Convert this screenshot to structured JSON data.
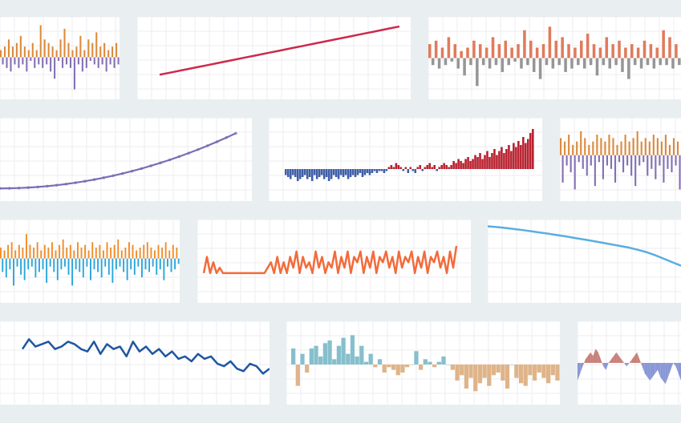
{
  "colors": {
    "background": "#e9eef1",
    "tile": "#ffffff",
    "grid": "#eceef0"
  },
  "chart_data": [
    {
      "id": "t1",
      "type": "bar",
      "subtype": "diverging",
      "colors": {
        "pos": "#dc8a3c",
        "neg": "#8470b4"
      },
      "ylim": [
        -10,
        10
      ],
      "values": [
        2,
        -2,
        3,
        -3,
        5,
        -4,
        3,
        -2,
        4,
        -3,
        6,
        -2,
        3,
        -4,
        2,
        -1,
        4,
        -3,
        2,
        -2,
        9,
        -3,
        5,
        -2,
        4,
        -4,
        3,
        -6,
        2,
        -1,
        5,
        -3,
        8,
        -2,
        4,
        -3,
        2,
        -9,
        3,
        -2,
        6,
        -4,
        2,
        -3,
        5,
        -1,
        4,
        -2,
        7,
        -3,
        3,
        -2,
        4,
        -4,
        2,
        -2,
        3,
        -3,
        4,
        -2
      ]
    },
    {
      "id": "t2",
      "type": "line",
      "colors": {
        "line": "#cc2a4e"
      },
      "x": [
        0,
        1,
        2,
        3,
        4,
        5,
        6,
        7,
        8,
        9,
        10,
        11,
        12,
        13,
        14,
        15,
        16,
        17,
        18,
        19,
        20
      ],
      "values": [
        0,
        2.6,
        5.3,
        7.9,
        10.5,
        13.2,
        15.8,
        18.5,
        21.1,
        23.8,
        26.4,
        29.1,
        31.7,
        34.4,
        37,
        39.7,
        42.3,
        45,
        47.6,
        50.3,
        52.9
      ],
      "ylim": [
        -20,
        60
      ]
    },
    {
      "id": "t3",
      "type": "bar",
      "subtype": "diverging",
      "colors": {
        "pos": "#e07b5c",
        "neg": "#969696"
      },
      "ylim": [
        -10,
        10
      ],
      "values": [
        4,
        -2,
        5,
        -3,
        3,
        -2,
        6,
        -1,
        4,
        -3,
        2,
        -5,
        3,
        -2,
        5,
        -8,
        4,
        -2,
        3,
        -3,
        6,
        -2,
        4,
        -4,
        5,
        -2,
        3,
        -1,
        4,
        -3,
        8,
        -2,
        5,
        -4,
        3,
        -6,
        4,
        -2,
        9,
        -3,
        5,
        -2,
        6,
        -4,
        4,
        -3,
        3,
        -2,
        5,
        -3,
        7,
        -2,
        4,
        -5,
        3,
        -2,
        6,
        -3,
        4,
        -2,
        5,
        -4,
        3,
        -6,
        4,
        -2,
        3,
        -3,
        5,
        -2,
        4,
        -3,
        3,
        -2,
        8,
        -2,
        6,
        -3,
        4,
        -2
      ]
    },
    {
      "id": "t4",
      "type": "line",
      "subtype": "quadratic-with-markers",
      "colors": {
        "line": "#7b6db3"
      },
      "x": [
        0,
        1,
        2,
        3,
        4,
        5,
        6,
        7,
        8,
        9,
        10,
        11,
        12,
        13,
        14,
        15,
        16,
        17,
        18,
        19,
        20,
        21,
        22,
        23,
        24,
        25
      ],
      "values": [
        0,
        0.4,
        1.5,
        3.4,
        6,
        9.4,
        13.5,
        18.4,
        24,
        30.4,
        37.5,
        45.4,
        54,
        63.4,
        73.5,
        84.4,
        96,
        108.4,
        121.5,
        135.4,
        150,
        165.4,
        181.5,
        198.4,
        216,
        234.4
      ],
      "ylim": [
        -20,
        280
      ]
    },
    {
      "id": "t5",
      "type": "bar",
      "subtype": "diverging",
      "colors": {
        "pos": "#b8202e",
        "neg": "#3f5ea8"
      },
      "ylim": [
        -12,
        24
      ],
      "values": [
        -3,
        -4,
        -5,
        -3,
        -4,
        -6,
        -5,
        -4,
        -3,
        -5,
        -4,
        -6,
        -3,
        -5,
        -4,
        -3,
        -5,
        -4,
        -6,
        -5,
        -3,
        -4,
        -5,
        -3,
        -4,
        -3,
        -5,
        -4,
        -3,
        -4,
        -3,
        -2,
        -4,
        -3,
        -2,
        -3,
        -2,
        -1,
        -2,
        -1,
        -1,
        -2,
        -1,
        1,
        2,
        1,
        3,
        2,
        1,
        -1,
        1,
        -2,
        1,
        -1,
        -2,
        1,
        2,
        -1,
        1,
        2,
        3,
        1,
        2,
        -1,
        1,
        2,
        3,
        2,
        1,
        2,
        4,
        3,
        5,
        4,
        3,
        5,
        6,
        4,
        5,
        7,
        6,
        8,
        5,
        7,
        9,
        6,
        8,
        10,
        7,
        9,
        11,
        8,
        10,
        12,
        9,
        13,
        11,
        14,
        12,
        16,
        13,
        15,
        18,
        20
      ]
    },
    {
      "id": "t6",
      "type": "bar",
      "subtype": "diverging",
      "colors": {
        "pos": "#dc8a3c",
        "neg": "#8470b4"
      },
      "ylim": [
        -12,
        10
      ],
      "values": [
        5,
        -8,
        4,
        -3,
        6,
        -5,
        3,
        -10,
        4,
        -2,
        7,
        -4,
        5,
        -6,
        3,
        -3,
        4,
        -9,
        6,
        -2,
        5,
        -7,
        4,
        -3,
        6,
        -4,
        5,
        -8,
        3,
        -2,
        4,
        -5,
        6,
        -3,
        4,
        -6,
        5,
        -9,
        7,
        -3,
        4,
        -2,
        5,
        -6,
        4,
        -4,
        6,
        -7,
        5,
        -3,
        4,
        -8,
        6,
        -4,
        3,
        -5,
        5,
        -3,
        4,
        -10
      ]
    },
    {
      "id": "t7",
      "type": "bar",
      "subtype": "diverging",
      "colors": {
        "pos": "#f28c28",
        "neg": "#2aa5dc"
      },
      "ylim": [
        -14,
        12
      ],
      "values": [
        4,
        -5,
        3,
        -7,
        5,
        -4,
        6,
        -10,
        3,
        -3,
        5,
        -6,
        4,
        -8,
        9,
        -4,
        5,
        -3,
        4,
        -7,
        6,
        -5,
        3,
        -4,
        5,
        -9,
        4,
        -3,
        6,
        -5,
        3,
        -8,
        5,
        -4,
        7,
        -3,
        4,
        -6,
        5,
        -10,
        3,
        -4,
        6,
        -5,
        4,
        -7,
        5,
        -3,
        3,
        -8,
        6,
        -4,
        4,
        -5,
        5,
        -7,
        3,
        -3,
        6,
        -6,
        4,
        -9,
        5,
        -4,
        7,
        -3,
        3,
        -5,
        4,
        -8,
        6,
        -4,
        5,
        -6,
        3,
        -3,
        4,
        -7,
        5,
        -4,
        6,
        -5,
        4,
        -3,
        3,
        -6,
        5,
        -4,
        4,
        -8,
        6,
        -3,
        3,
        -5,
        5,
        -4,
        4,
        -2
      ]
    },
    {
      "id": "t8",
      "type": "line",
      "subtype": "oscillating",
      "colors": {
        "line": "#f36b3a"
      },
      "x": [
        0,
        1,
        2,
        3,
        4,
        5,
        6,
        7,
        8,
        9,
        10,
        11,
        12,
        13,
        14,
        15,
        16,
        17,
        18,
        19,
        20,
        21,
        22,
        23,
        24,
        25,
        26,
        27,
        28,
        29,
        30,
        31,
        32,
        33,
        34,
        35,
        36,
        37,
        38,
        39,
        40,
        41,
        42,
        43,
        44,
        45,
        46,
        47,
        48,
        49,
        50,
        51,
        52,
        53,
        54,
        55,
        56,
        57,
        58,
        59,
        60,
        61,
        62,
        63,
        64,
        65,
        66,
        67,
        68,
        69,
        70,
        71,
        72,
        73,
        74,
        75,
        76,
        77,
        78,
        79
      ],
      "values": [
        0,
        3,
        0,
        2,
        0,
        1,
        0,
        0,
        0,
        0,
        0,
        0,
        0,
        0,
        0,
        0,
        0,
        0,
        0,
        0,
        1,
        2,
        0,
        3,
        0,
        2,
        0,
        3,
        1,
        4,
        0,
        3,
        1,
        2,
        0,
        4,
        1,
        3,
        0,
        2,
        1,
        4,
        0,
        3,
        1,
        4,
        0,
        3,
        2,
        4,
        0,
        3,
        1,
        4,
        0,
        3,
        2,
        4,
        1,
        3,
        0,
        4,
        1,
        3,
        2,
        4,
        0,
        3,
        1,
        4,
        0,
        3,
        2,
        4,
        1,
        3,
        0,
        4,
        1,
        5
      ],
      "ylim": [
        -4,
        9
      ]
    },
    {
      "id": "t9",
      "type": "line",
      "colors": {
        "line": "#5aaee0"
      },
      "x": [
        0,
        1,
        2,
        3,
        4,
        5,
        6,
        7,
        8,
        9,
        10,
        11,
        12,
        13,
        14,
        15,
        16,
        17,
        18,
        19,
        20,
        21,
        22
      ],
      "values": [
        100,
        99.6,
        99.1,
        98.5,
        97.9,
        97.2,
        96.5,
        95.8,
        95,
        94.3,
        93.4,
        92.6,
        91.8,
        90.9,
        90,
        89.1,
        88.2,
        87,
        85.7,
        84,
        82,
        80,
        78
      ],
      "ylim": [
        60,
        102
      ]
    },
    {
      "id": "t10",
      "type": "line",
      "colors": {
        "line": "#1f56a0"
      },
      "x": [
        0,
        1,
        2,
        3,
        4,
        5,
        6,
        7,
        8,
        9,
        10,
        11,
        12,
        13,
        14,
        15,
        16,
        17,
        18,
        19,
        20,
        21,
        22,
        23,
        24,
        25,
        26,
        27,
        28,
        29,
        30,
        31,
        32,
        33,
        34,
        35,
        36,
        37,
        38
      ],
      "values": [
        8,
        12,
        9,
        10,
        11,
        8,
        9,
        11,
        10,
        8,
        7,
        11,
        6,
        10,
        8,
        9,
        5,
        11,
        7,
        9,
        6,
        8,
        5,
        7,
        4,
        5,
        3,
        6,
        4,
        5,
        2,
        1,
        3,
        0,
        -1,
        2,
        1,
        -2,
        0
      ],
      "ylim": [
        -12,
        18
      ]
    },
    {
      "id": "t11",
      "type": "bar",
      "subtype": "diverging",
      "colors": {
        "pos": "#86bfcc",
        "neg": "#dfb489"
      },
      "ylim": [
        -12,
        15
      ],
      "values": [
        6,
        -8,
        4,
        -3,
        6,
        7,
        3,
        8,
        9,
        2,
        7,
        10,
        4,
        11,
        3,
        7,
        1,
        4,
        -1,
        2,
        -3,
        -1,
        -2,
        -4,
        -3,
        -1,
        0,
        5,
        -2,
        2,
        1,
        -1,
        1,
        3,
        0,
        -2,
        -6,
        -4,
        -9,
        -5,
        -10,
        -7,
        -5,
        -8,
        -4,
        -3,
        -6,
        -9,
        0,
        -5,
        -7,
        -8,
        -4,
        -6,
        -3,
        -5,
        -7,
        -4,
        -6
      ]
    },
    {
      "id": "t12",
      "type": "area",
      "subtype": "diverging",
      "colors": {
        "pos": "#c7817a",
        "neg": "#8997d6"
      },
      "x": [
        0,
        1,
        2,
        3,
        4,
        5,
        6,
        7,
        8,
        9,
        10,
        11,
        12,
        13,
        14,
        15,
        16,
        17,
        18,
        19,
        20,
        21,
        22,
        23,
        24,
        25,
        26,
        27,
        28,
        29,
        30,
        31,
        32,
        33,
        34,
        35,
        36,
        37,
        38,
        39,
        40
      ],
      "values": [
        -5,
        -3,
        -1,
        1,
        2,
        3,
        2,
        4,
        3,
        1,
        -1,
        -2,
        0,
        1,
        2,
        3,
        2,
        1,
        0,
        -1,
        0,
        1,
        2,
        3,
        1,
        -1,
        -3,
        -4,
        -5,
        -4,
        -3,
        -2,
        -4,
        -5,
        -6,
        -4,
        -2,
        0,
        -1,
        -3,
        -5
      ],
      "ylim": [
        -10,
        10
      ]
    }
  ]
}
